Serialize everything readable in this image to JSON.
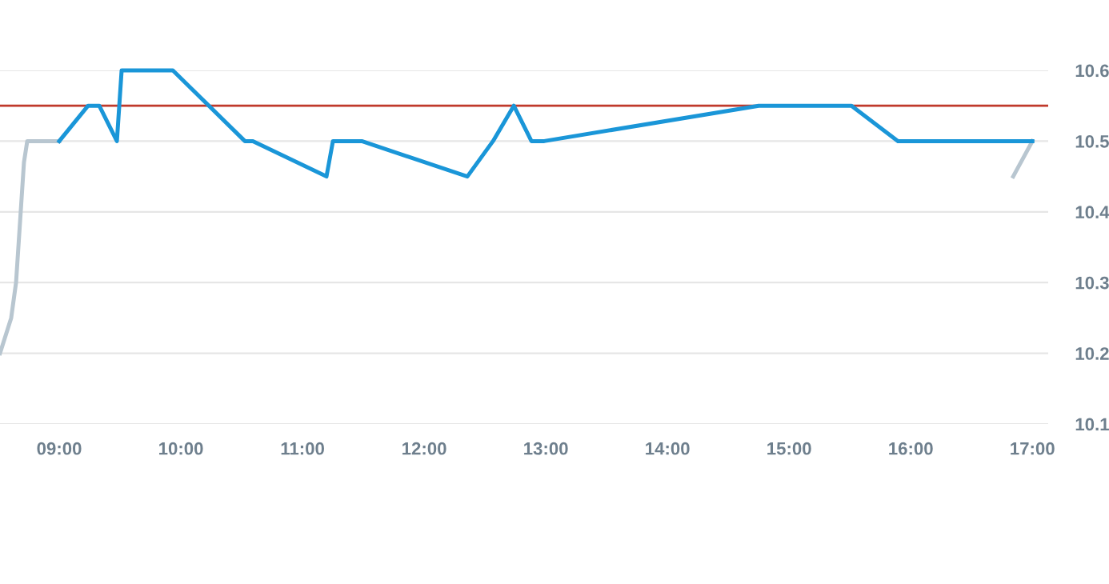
{
  "chart_data": {
    "type": "line",
    "series": [
      {
        "color": "#b8c6d0",
        "x": [
          8.513,
          8.605,
          8.645,
          8.71,
          8.737,
          9.0,
          null,
          16.842,
          17.0
        ],
        "values": [
          10.2,
          10.25,
          10.3,
          10.47,
          10.5,
          10.5,
          null,
          10.45,
          10.5
        ]
      },
      {
        "color": "#1a96d8",
        "x": [
          9.0,
          9.237,
          9.329,
          9.474,
          9.513,
          9.934,
          10.526,
          10.592,
          11.197,
          11.25,
          11.487,
          12.355,
          12.566,
          12.737,
          12.882,
          12.987,
          14.75,
          15.513,
          15.895,
          17.0
        ],
        "values": [
          10.5,
          10.55,
          10.55,
          10.5,
          10.6,
          10.6,
          10.5,
          10.5,
          10.45,
          10.5,
          10.5,
          10.45,
          10.5,
          10.55,
          10.5,
          10.5,
          10.55,
          10.55,
          10.5,
          10.5
        ]
      }
    ],
    "ref_lines": [
      {
        "axis": "y",
        "value": 10.55,
        "color": "#c0392b"
      }
    ],
    "xlim": [
      8.513,
      17.13
    ],
    "xticks": [
      {
        "value": 9,
        "label": "09:00"
      },
      {
        "value": 10,
        "label": "10:00"
      },
      {
        "value": 11,
        "label": "11:00"
      },
      {
        "value": 12,
        "label": "12:00"
      },
      {
        "value": 13,
        "label": "13:00"
      },
      {
        "value": 14,
        "label": "14:00"
      },
      {
        "value": 15,
        "label": "15:00"
      },
      {
        "value": 16,
        "label": "16:00"
      },
      {
        "value": 17,
        "label": "17:00"
      }
    ],
    "ylim": [
      10.1,
      10.6
    ],
    "yticks": [
      10.1,
      10.2,
      10.3,
      10.4,
      10.5,
      10.6
    ],
    "grid": "y",
    "marker": "none",
    "line_style": "solid",
    "legend": false
  }
}
